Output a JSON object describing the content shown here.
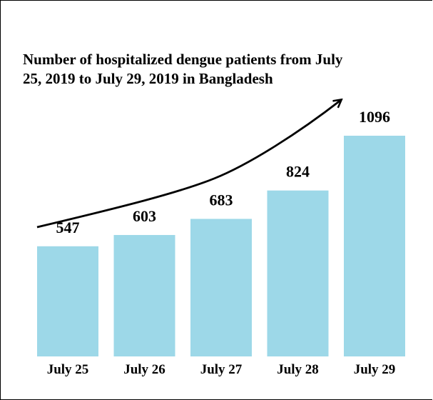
{
  "chart_data": {
    "type": "bar",
    "title_lines": [
      "Number of hospitalized dengue patients from July",
      "25, 2019 to July 29, 2019 in Bangladesh"
    ],
    "categories": [
      "July 25",
      "July 26",
      "July 27",
      "July 28",
      "July 29"
    ],
    "values": [
      547,
      603,
      683,
      824,
      1096
    ],
    "data_labels": [
      "547",
      "603",
      "683",
      "824",
      "1096"
    ],
    "xlabel": "",
    "ylabel": "",
    "ylim": [
      0,
      1096
    ],
    "grid": false,
    "legend": "none",
    "trend_arrow": true,
    "bar_color": "#9dd8e8",
    "text_color": "#000000"
  }
}
